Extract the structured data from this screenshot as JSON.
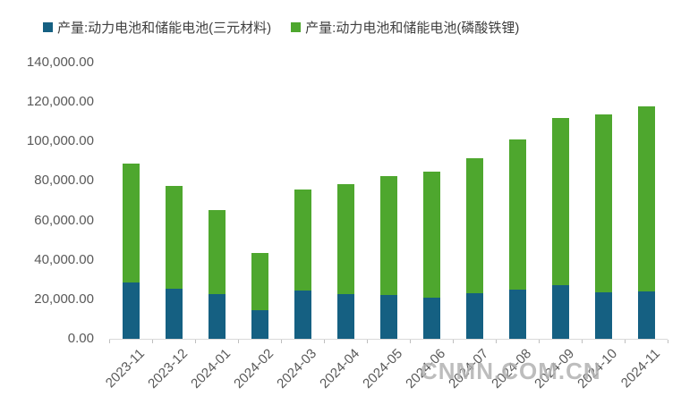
{
  "watermark": {
    "text": "CNMN.COM.CN"
  },
  "chart_data": {
    "type": "bar",
    "stacked": true,
    "title": "",
    "xlabel": "",
    "ylabel": "",
    "grid": false,
    "legend_position": "top",
    "categories": [
      "2023-11",
      "2023-12",
      "2024-01",
      "2024-02",
      "2024-03",
      "2024-04",
      "2024-05",
      "2024-06",
      "2024-07",
      "2024-08",
      "2024-09",
      "2024-10",
      "2024-11"
    ],
    "series": [
      {
        "name": "产量:动力电池和储能电池(三元材料)",
        "color": "#156082",
        "values": [
          28400,
          25400,
          22700,
          14700,
          24500,
          22700,
          22300,
          21000,
          23000,
          25000,
          27100,
          23500,
          24100
        ]
      },
      {
        "name": "产量:动力电池和储能电池(磷酸铁锂)",
        "color": "#4EA72E",
        "values": [
          60100,
          52300,
          42800,
          28800,
          51300,
          55900,
          60300,
          63700,
          68200,
          76000,
          84600,
          90000,
          93900
        ]
      }
    ],
    "stack_totals": [
      88500,
      77700,
      65500,
      43500,
      75800,
      78600,
      82600,
      84700,
      91200,
      101000,
      111700,
      113500,
      118000
    ],
    "y_axis": {
      "min": 0,
      "max": 140000,
      "tick_step": 20000,
      "tick_labels": [
        "0.00",
        "20,000.00",
        "40,000.00",
        "60,000.00",
        "80,000.00",
        "100,000.00",
        "120,000.00",
        "140,000.00"
      ]
    }
  }
}
